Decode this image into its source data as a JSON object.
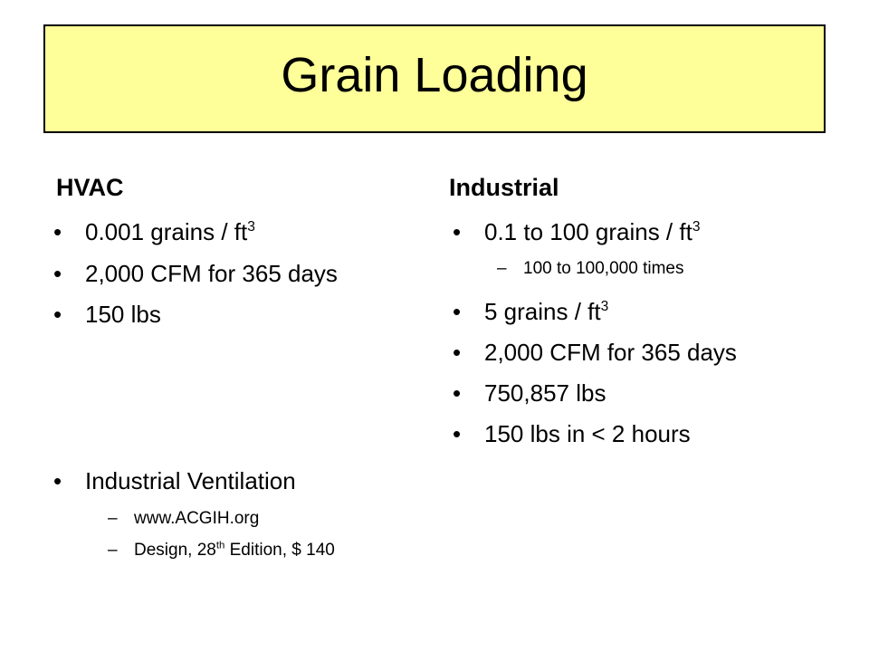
{
  "slide": {
    "title": "Grain Loading",
    "title_background": "#FFFF99"
  },
  "hvac": {
    "heading": "HVAC",
    "bullets": [
      {
        "text": "0.001 grains / ft",
        "sup": "3"
      },
      {
        "text": "2,000 CFM for 365 days"
      },
      {
        "text": "150 lbs"
      },
      {
        "text": "Industrial Ventilation"
      }
    ],
    "sub_bullets": [
      {
        "text": "www.ACGIH.org"
      },
      {
        "before": "Design, 28",
        "sup": "th",
        "after": " Edition, $ 140"
      }
    ]
  },
  "industrial": {
    "heading": "Industrial",
    "bullets": [
      {
        "text": "0.1 to 100 grains / ft",
        "sup": "3"
      },
      {
        "text": "5 grains / ft",
        "sup": "3"
      },
      {
        "text": "2,000 CFM for 365 days"
      },
      {
        "text": "750,857 lbs"
      },
      {
        "text": "150 lbs in < 2 hours"
      }
    ],
    "sub_bullets": [
      {
        "text": "100 to 100,000 times"
      }
    ]
  },
  "glyphs": {
    "bullet": "•",
    "dash": "–"
  }
}
